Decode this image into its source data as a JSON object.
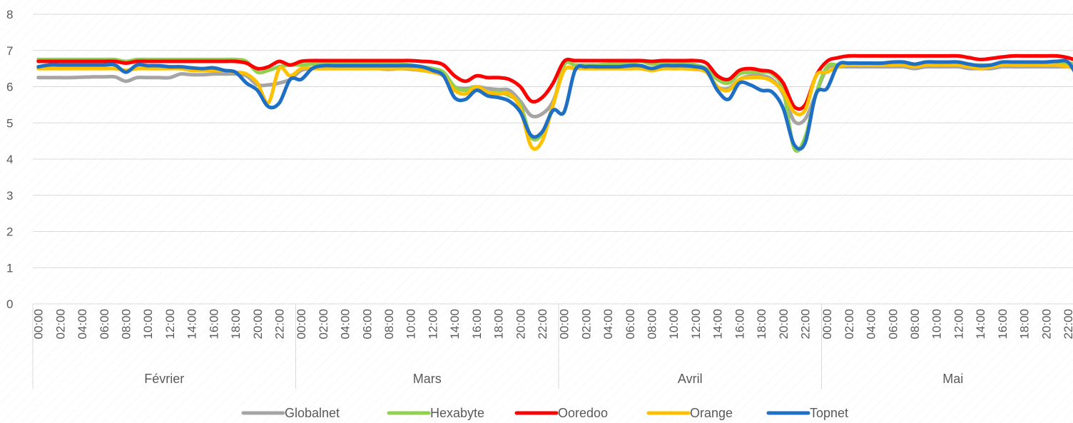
{
  "chart_data": {
    "type": "line",
    "title": "",
    "xlabel": "",
    "ylabel": "",
    "ylim": [
      0,
      8
    ],
    "yticks": [
      0,
      1,
      2,
      3,
      4,
      5,
      6,
      7,
      8
    ],
    "grid": true,
    "legend_position": "bottom",
    "groups": [
      "Février",
      "Mars",
      "Avril",
      "Mai"
    ],
    "hour_labels": [
      "00:00",
      "02:00",
      "04:00",
      "06:00",
      "08:00",
      "10:00",
      "12:00",
      "14:00",
      "16:00",
      "18:00",
      "20:00",
      "22:00"
    ],
    "x": [
      "Février 00:00",
      "Février 01:00",
      "Février 02:00",
      "Février 03:00",
      "Février 04:00",
      "Février 05:00",
      "Février 06:00",
      "Février 07:00",
      "Février 08:00",
      "Février 09:00",
      "Février 10:00",
      "Février 11:00",
      "Février 12:00",
      "Février 13:00",
      "Février 14:00",
      "Février 15:00",
      "Février 16:00",
      "Février 17:00",
      "Février 18:00",
      "Février 19:00",
      "Février 20:00",
      "Février 21:00",
      "Février 22:00",
      "Février 23:00",
      "Mars 00:00",
      "Mars 01:00",
      "Mars 02:00",
      "Mars 03:00",
      "Mars 04:00",
      "Mars 05:00",
      "Mars 06:00",
      "Mars 07:00",
      "Mars 08:00",
      "Mars 09:00",
      "Mars 10:00",
      "Mars 11:00",
      "Mars 12:00",
      "Mars 13:00",
      "Mars 14:00",
      "Mars 15:00",
      "Mars 16:00",
      "Mars 17:00",
      "Mars 18:00",
      "Mars 19:00",
      "Mars 20:00",
      "Mars 21:00",
      "Mars 22:00",
      "Mars 23:00",
      "Avril 00:00",
      "Avril 01:00",
      "Avril 02:00",
      "Avril 03:00",
      "Avril 04:00",
      "Avril 05:00",
      "Avril 06:00",
      "Avril 07:00",
      "Avril 08:00",
      "Avril 09:00",
      "Avril 10:00",
      "Avril 11:00",
      "Avril 12:00",
      "Avril 13:00",
      "Avril 14:00",
      "Avril 15:00",
      "Avril 16:00",
      "Avril 17:00",
      "Avril 18:00",
      "Avril 19:00",
      "Avril 20:00",
      "Avril 21:00",
      "Avril 22:00",
      "Avril 23:00",
      "Mai 00:00",
      "Mai 01:00",
      "Mai 02:00",
      "Mai 03:00",
      "Mai 04:00",
      "Mai 05:00",
      "Mai 06:00",
      "Mai 07:00",
      "Mai 08:00",
      "Mai 09:00",
      "Mai 10:00",
      "Mai 11:00",
      "Mai 12:00",
      "Mai 13:00",
      "Mai 14:00",
      "Mai 15:00",
      "Mai 16:00",
      "Mai 17:00",
      "Mai 18:00",
      "Mai 19:00",
      "Mai 20:00",
      "Mai 21:00",
      "Mai 22:00",
      "Mai 23:00"
    ],
    "series": [
      {
        "name": "Globalnet",
        "color": "#a5a5a5",
        "values": [
          6.25,
          6.25,
          6.25,
          6.25,
          6.26,
          6.27,
          6.27,
          6.27,
          6.15,
          6.25,
          6.25,
          6.25,
          6.25,
          6.35,
          6.33,
          6.33,
          6.35,
          6.35,
          6.35,
          6.3,
          6.05,
          6.05,
          6.1,
          6.2,
          6.45,
          6.5,
          6.5,
          6.5,
          6.5,
          6.5,
          6.5,
          6.5,
          6.48,
          6.5,
          6.48,
          6.45,
          6.4,
          6.3,
          6.0,
          5.95,
          6.0,
          5.95,
          5.92,
          5.9,
          5.6,
          5.2,
          5.25,
          5.6,
          6.45,
          6.5,
          6.5,
          6.5,
          6.5,
          6.5,
          6.5,
          6.5,
          6.45,
          6.5,
          6.5,
          6.5,
          6.48,
          6.4,
          6.0,
          5.95,
          6.2,
          6.3,
          6.3,
          6.2,
          5.8,
          5.05,
          5.1,
          5.8,
          6.5,
          6.55,
          6.55,
          6.55,
          6.55,
          6.55,
          6.55,
          6.55,
          6.5,
          6.55,
          6.55,
          6.55,
          6.55,
          6.5,
          6.5,
          6.5,
          6.55,
          6.55,
          6.55,
          6.55,
          6.55,
          6.55,
          6.55,
          6.5
        ]
      },
      {
        "name": "Hexabyte",
        "color": "#92d050",
        "values": [
          6.75,
          6.75,
          6.75,
          6.75,
          6.75,
          6.75,
          6.75,
          6.75,
          6.7,
          6.75,
          6.75,
          6.75,
          6.75,
          6.75,
          6.75,
          6.75,
          6.75,
          6.75,
          6.75,
          6.7,
          6.4,
          6.45,
          6.55,
          6.6,
          6.6,
          6.62,
          6.62,
          6.62,
          6.62,
          6.62,
          6.62,
          6.62,
          6.62,
          6.62,
          6.6,
          6.55,
          6.5,
          6.4,
          6.0,
          5.9,
          6.0,
          5.85,
          5.85,
          5.75,
          5.5,
          4.6,
          4.7,
          5.5,
          6.6,
          6.6,
          6.6,
          6.6,
          6.62,
          6.62,
          6.65,
          6.7,
          6.62,
          6.65,
          6.65,
          6.65,
          6.6,
          6.5,
          6.2,
          6.1,
          6.35,
          6.4,
          6.4,
          6.35,
          5.9,
          4.3,
          4.6,
          5.8,
          6.55,
          6.6,
          6.65,
          6.65,
          6.65,
          6.65,
          6.65,
          6.65,
          6.6,
          6.65,
          6.65,
          6.65,
          6.65,
          6.6,
          6.6,
          6.6,
          6.65,
          6.65,
          6.65,
          6.65,
          6.65,
          6.65,
          6.65,
          6.6
        ]
      },
      {
        "name": "Ooredoo",
        "color": "#ff0000",
        "values": [
          6.7,
          6.7,
          6.7,
          6.7,
          6.7,
          6.7,
          6.7,
          6.7,
          6.65,
          6.7,
          6.7,
          6.7,
          6.7,
          6.7,
          6.7,
          6.7,
          6.7,
          6.7,
          6.7,
          6.65,
          6.5,
          6.55,
          6.7,
          6.6,
          6.7,
          6.72,
          6.72,
          6.72,
          6.72,
          6.72,
          6.72,
          6.72,
          6.72,
          6.72,
          6.72,
          6.7,
          6.68,
          6.6,
          6.3,
          6.15,
          6.3,
          6.25,
          6.25,
          6.2,
          6.0,
          5.6,
          5.7,
          6.1,
          6.7,
          6.72,
          6.72,
          6.72,
          6.72,
          6.72,
          6.72,
          6.72,
          6.7,
          6.72,
          6.72,
          6.72,
          6.72,
          6.65,
          6.3,
          6.2,
          6.45,
          6.5,
          6.45,
          6.4,
          6.1,
          5.45,
          5.5,
          6.3,
          6.7,
          6.8,
          6.85,
          6.85,
          6.85,
          6.85,
          6.85,
          6.85,
          6.85,
          6.85,
          6.85,
          6.85,
          6.85,
          6.8,
          6.75,
          6.78,
          6.82,
          6.85,
          6.85,
          6.85,
          6.85,
          6.85,
          6.8,
          6.7
        ]
      },
      {
        "name": "Orange",
        "color": "#ffc000",
        "values": [
          6.5,
          6.5,
          6.5,
          6.5,
          6.5,
          6.5,
          6.5,
          6.5,
          6.45,
          6.5,
          6.5,
          6.5,
          6.5,
          6.5,
          6.45,
          6.45,
          6.45,
          6.45,
          6.4,
          6.35,
          6.1,
          5.55,
          6.5,
          6.3,
          6.5,
          6.5,
          6.5,
          6.5,
          6.5,
          6.5,
          6.5,
          6.5,
          6.5,
          6.5,
          6.5,
          6.45,
          6.4,
          6.3,
          5.9,
          5.8,
          6.0,
          5.85,
          5.8,
          5.8,
          5.4,
          4.35,
          4.5,
          5.5,
          6.45,
          6.5,
          6.5,
          6.5,
          6.5,
          6.5,
          6.5,
          6.5,
          6.45,
          6.5,
          6.5,
          6.5,
          6.48,
          6.4,
          6.0,
          5.9,
          6.2,
          6.25,
          6.25,
          6.15,
          5.85,
          5.3,
          5.35,
          6.3,
          6.4,
          6.55,
          6.6,
          6.6,
          6.6,
          6.6,
          6.6,
          6.6,
          6.55,
          6.6,
          6.6,
          6.6,
          6.6,
          6.55,
          6.5,
          6.55,
          6.6,
          6.6,
          6.6,
          6.6,
          6.6,
          6.6,
          6.55,
          6.5
        ]
      },
      {
        "name": "Topnet",
        "color": "#1f6fc5",
        "values": [
          6.55,
          6.6,
          6.6,
          6.6,
          6.6,
          6.6,
          6.6,
          6.6,
          6.4,
          6.6,
          6.58,
          6.58,
          6.55,
          6.55,
          6.52,
          6.5,
          6.52,
          6.45,
          6.4,
          6.1,
          5.9,
          5.45,
          5.55,
          6.2,
          6.2,
          6.5,
          6.58,
          6.58,
          6.58,
          6.58,
          6.58,
          6.58,
          6.58,
          6.58,
          6.58,
          6.55,
          6.45,
          6.3,
          5.7,
          5.65,
          5.9,
          5.75,
          5.7,
          5.6,
          5.3,
          4.65,
          4.75,
          5.35,
          5.3,
          6.45,
          6.55,
          6.55,
          6.55,
          6.55,
          6.58,
          6.58,
          6.5,
          6.58,
          6.58,
          6.58,
          6.55,
          6.45,
          5.9,
          5.65,
          6.1,
          6.05,
          5.9,
          5.85,
          5.4,
          4.4,
          4.45,
          5.8,
          5.95,
          6.6,
          6.65,
          6.65,
          6.65,
          6.65,
          6.68,
          6.68,
          6.62,
          6.68,
          6.68,
          6.68,
          6.68,
          6.62,
          6.58,
          6.6,
          6.68,
          6.68,
          6.68,
          6.68,
          6.68,
          6.7,
          6.68,
          6.2
        ]
      }
    ]
  }
}
